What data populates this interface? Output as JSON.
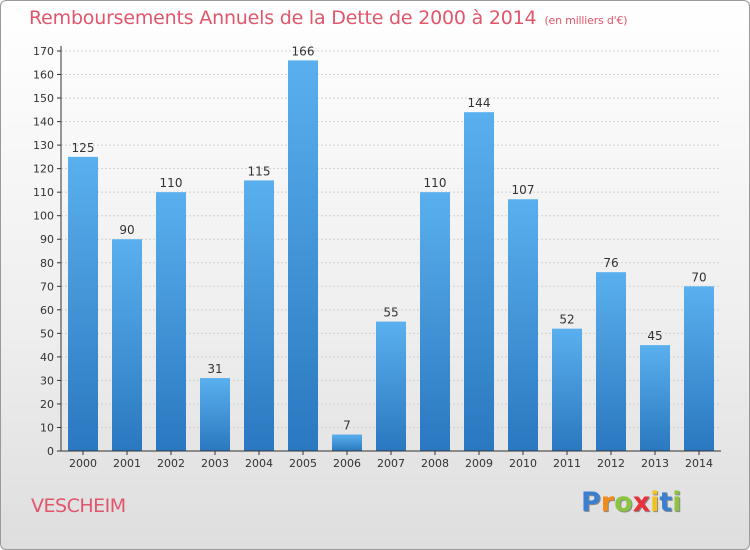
{
  "chart_data": {
    "type": "bar",
    "title": "Remboursements Annuels de la Dette de 2000 à 2014",
    "unit": "(en milliers d'€)",
    "categories": [
      "2000",
      "2001",
      "2002",
      "2003",
      "2004",
      "2005",
      "2006",
      "2007",
      "2008",
      "2009",
      "2010",
      "2011",
      "2012",
      "2013",
      "2014"
    ],
    "values": [
      125,
      90,
      110,
      31,
      115,
      166,
      7,
      55,
      110,
      144,
      107,
      52,
      76,
      45,
      70
    ],
    "ylim": [
      0,
      170
    ],
    "yticks": [
      0,
      10,
      20,
      30,
      40,
      50,
      60,
      70,
      80,
      90,
      100,
      110,
      120,
      130,
      140,
      150,
      160,
      170
    ],
    "grid": true,
    "legend": "none",
    "bar_color": "#3d8fd8"
  },
  "footer": {
    "commune": "VESCHEIM",
    "logo_letters": [
      "P",
      "r",
      "o",
      "x",
      "i",
      "t",
      "i"
    ],
    "logo_colors": [
      "#3a7fd0",
      "#f28a1e",
      "#8bc53f",
      "#e8303a",
      "#f2c21e",
      "#3a7fd0",
      "#8bc53f"
    ]
  },
  "colors": {
    "title": "#e0566a",
    "grid": "#d0d0d0",
    "axis": "#333333"
  }
}
